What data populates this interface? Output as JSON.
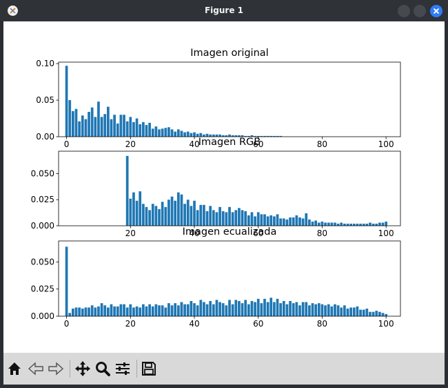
{
  "window": {
    "title": "Figure 1"
  },
  "toolbar": {
    "buttons": [
      "home-icon",
      "back-arrow-icon",
      "forward-arrow-icon",
      "pan-icon",
      "zoom-icon",
      "configure-subplots-icon",
      "save-icon"
    ]
  },
  "colors": {
    "bar": "#1f77b4",
    "titlebar": "#2f3237",
    "close_button": "#2f7cf6",
    "toolbar": "#d9d9d9"
  },
  "chart_data": [
    {
      "type": "bar",
      "title": "Imagen original",
      "xlim": [
        -2.5,
        104.5
      ],
      "ylim": [
        0,
        0.102
      ],
      "xticks": [
        0,
        20,
        40,
        60,
        80,
        100
      ],
      "xtick_labels": [
        "0",
        "20",
        "40",
        "60",
        "80",
        "100"
      ],
      "yticks": [
        0,
        0.05,
        0.1
      ],
      "ytick_labels": [
        "0.00",
        "0.05",
        "0.10"
      ],
      "x": [
        0,
        1,
        2,
        3,
        4,
        5,
        6,
        7,
        8,
        9,
        10,
        11,
        12,
        13,
        14,
        15,
        16,
        17,
        18,
        19,
        20,
        21,
        22,
        23,
        24,
        25,
        26,
        27,
        28,
        29,
        30,
        31,
        32,
        33,
        34,
        35,
        36,
        37,
        38,
        39,
        40,
        41,
        42,
        43,
        44,
        45,
        46,
        47,
        48,
        49,
        50,
        51,
        52,
        53,
        54,
        55,
        56,
        57,
        58,
        59,
        60,
        61,
        62,
        63,
        64,
        65,
        66,
        67
      ],
      "values": [
        0.097,
        0.05,
        0.035,
        0.038,
        0.021,
        0.029,
        0.024,
        0.034,
        0.04,
        0.027,
        0.048,
        0.027,
        0.031,
        0.041,
        0.024,
        0.03,
        0.018,
        0.03,
        0.03,
        0.021,
        0.027,
        0.02,
        0.025,
        0.017,
        0.02,
        0.016,
        0.019,
        0.011,
        0.014,
        0.01,
        0.011,
        0.012,
        0.013,
        0.01,
        0.007,
        0.01,
        0.008,
        0.006,
        0.007,
        0.005,
        0.006,
        0.004,
        0.005,
        0.003,
        0.004,
        0.003,
        0.003,
        0.003,
        0.003,
        0.002,
        0.002,
        0.003,
        0.002,
        0.002,
        0.002,
        0.002,
        0.001,
        0.001,
        0.002,
        0.001,
        0.001,
        0.001,
        0.001,
        0.001,
        0.001,
        0.001,
        0.001,
        0.001
      ]
    },
    {
      "type": "bar",
      "title": "Imagen RGB",
      "xlim": [
        -2.5,
        104.5
      ],
      "ylim": [
        0,
        0.0715
      ],
      "xticks": [
        20,
        40,
        60,
        80,
        100
      ],
      "xtick_labels": [
        "20",
        "40",
        "60",
        "80",
        "100"
      ],
      "yticks": [
        0,
        0.025,
        0.05
      ],
      "ytick_labels": [
        "0.000",
        "0.025",
        "0.050"
      ],
      "x": [
        19,
        20,
        21,
        22,
        23,
        24,
        25,
        26,
        27,
        28,
        29,
        30,
        31,
        32,
        33,
        34,
        35,
        36,
        37,
        38,
        39,
        40,
        41,
        42,
        43,
        44,
        45,
        46,
        47,
        48,
        49,
        50,
        51,
        52,
        53,
        54,
        55,
        56,
        57,
        58,
        59,
        60,
        61,
        62,
        63,
        64,
        65,
        66,
        67,
        68,
        69,
        70,
        71,
        72,
        73,
        74,
        75,
        76,
        77,
        78,
        79,
        80,
        81,
        82,
        83,
        84,
        85,
        86,
        87,
        88,
        89,
        90,
        91,
        92,
        93,
        94,
        95,
        96,
        97,
        98,
        99,
        100
      ],
      "values": [
        0.067,
        0.026,
        0.032,
        0.024,
        0.033,
        0.021,
        0.018,
        0.015,
        0.021,
        0.019,
        0.016,
        0.023,
        0.018,
        0.025,
        0.028,
        0.024,
        0.032,
        0.03,
        0.021,
        0.025,
        0.019,
        0.024,
        0.015,
        0.02,
        0.02,
        0.014,
        0.019,
        0.015,
        0.013,
        0.018,
        0.014,
        0.013,
        0.018,
        0.013,
        0.015,
        0.017,
        0.015,
        0.014,
        0.01,
        0.013,
        0.009,
        0.013,
        0.011,
        0.011,
        0.009,
        0.01,
        0.009,
        0.011,
        0.007,
        0.007,
        0.006,
        0.008,
        0.008,
        0.01,
        0.008,
        0.007,
        0.012,
        0.006,
        0.004,
        0.005,
        0.003,
        0.004,
        0.003,
        0.003,
        0.003,
        0.003,
        0.002,
        0.003,
        0.002,
        0.002,
        0.002,
        0.002,
        0.002,
        0.002,
        0.002,
        0.002,
        0.003,
        0.002,
        0.002,
        0.003,
        0.003,
        0.004
      ]
    },
    {
      "type": "bar",
      "title": "Imagen ecualizada",
      "xlim": [
        -2.5,
        104.5
      ],
      "ylim": [
        0,
        0.0693
      ],
      "xticks": [
        0,
        20,
        40,
        60,
        80,
        100
      ],
      "xtick_labels": [
        "0",
        "20",
        "40",
        "60",
        "80",
        "100"
      ],
      "yticks": [
        0,
        0.025,
        0.05
      ],
      "ytick_labels": [
        "0.000",
        "0.025",
        "0.050"
      ],
      "x": [
        0,
        1,
        2,
        3,
        4,
        5,
        6,
        7,
        8,
        9,
        10,
        11,
        12,
        13,
        14,
        15,
        16,
        17,
        18,
        19,
        20,
        21,
        22,
        23,
        24,
        25,
        26,
        27,
        28,
        29,
        30,
        31,
        32,
        33,
        34,
        35,
        36,
        37,
        38,
        39,
        40,
        41,
        42,
        43,
        44,
        45,
        46,
        47,
        48,
        49,
        50,
        51,
        52,
        53,
        54,
        55,
        56,
        57,
        58,
        59,
        60,
        61,
        62,
        63,
        64,
        65,
        66,
        67,
        68,
        69,
        70,
        71,
        72,
        73,
        74,
        75,
        76,
        77,
        78,
        79,
        80,
        81,
        82,
        83,
        84,
        85,
        86,
        87,
        88,
        89,
        90,
        91,
        92,
        93,
        94,
        95,
        96,
        97,
        98,
        99,
        100
      ],
      "values": [
        0.064,
        0.003,
        0.007,
        0.008,
        0.008,
        0.007,
        0.008,
        0.008,
        0.01,
        0.008,
        0.009,
        0.012,
        0.01,
        0.008,
        0.011,
        0.009,
        0.009,
        0.011,
        0.011,
        0.008,
        0.011,
        0.008,
        0.009,
        0.008,
        0.011,
        0.009,
        0.011,
        0.009,
        0.011,
        0.01,
        0.01,
        0.008,
        0.012,
        0.01,
        0.012,
        0.01,
        0.013,
        0.011,
        0.011,
        0.014,
        0.012,
        0.01,
        0.015,
        0.013,
        0.011,
        0.014,
        0.011,
        0.015,
        0.013,
        0.012,
        0.01,
        0.015,
        0.011,
        0.015,
        0.014,
        0.012,
        0.015,
        0.011,
        0.014,
        0.013,
        0.016,
        0.012,
        0.016,
        0.013,
        0.017,
        0.013,
        0.016,
        0.012,
        0.014,
        0.011,
        0.014,
        0.012,
        0.013,
        0.01,
        0.013,
        0.013,
        0.01,
        0.012,
        0.011,
        0.012,
        0.011,
        0.01,
        0.011,
        0.009,
        0.011,
        0.01,
        0.008,
        0.01,
        0.007,
        0.008,
        0.008,
        0.009,
        0.006,
        0.006,
        0.007,
        0.004,
        0.004,
        0.005,
        0.004,
        0.003,
        0.002
      ]
    }
  ]
}
